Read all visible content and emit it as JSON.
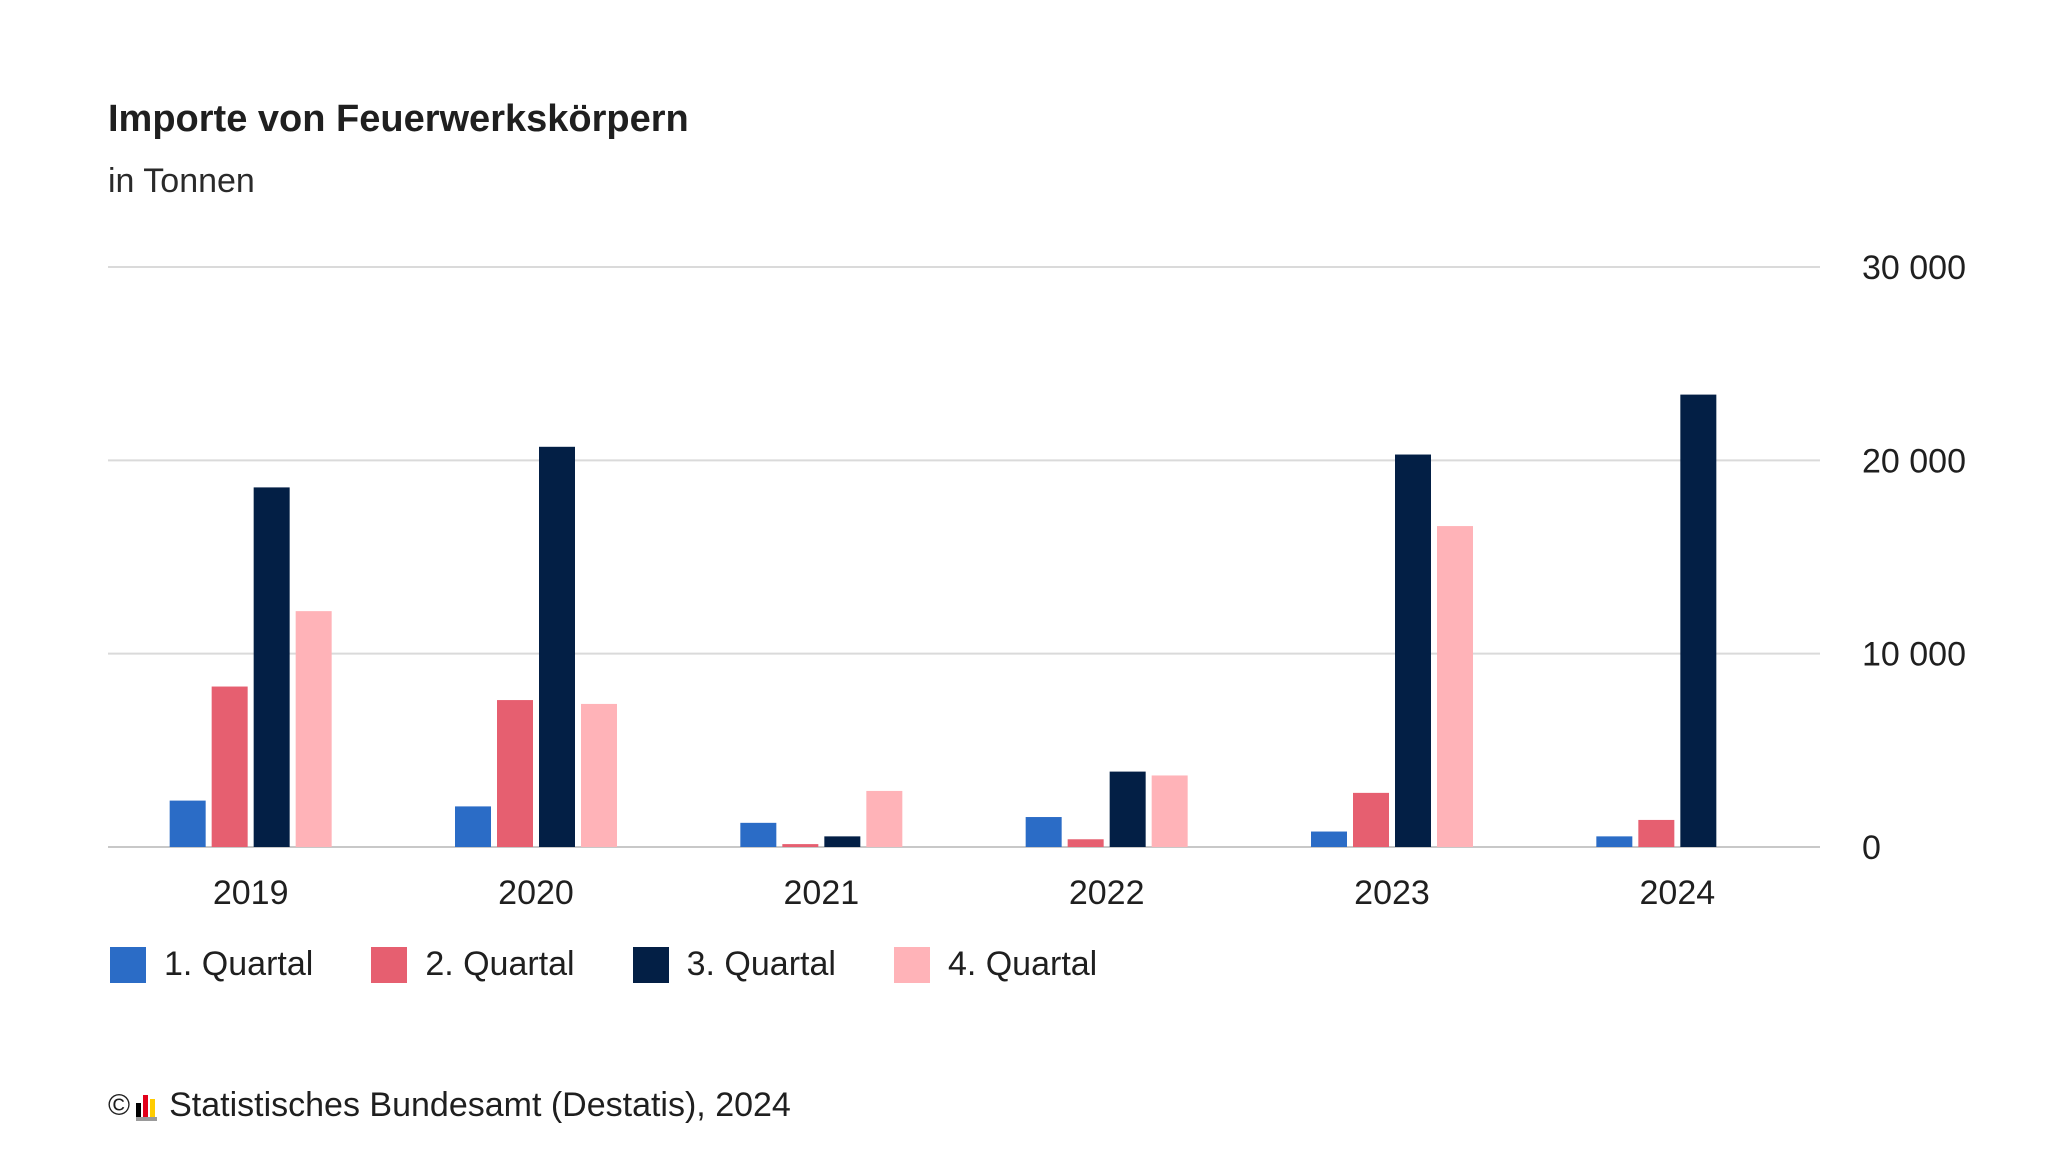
{
  "header": {
    "title": "Importe von Feuerwerkskörpern",
    "subtitle": "in Tonnen"
  },
  "chart_data": {
    "type": "bar",
    "title": "Importe von Feuerwerkskörpern",
    "subtitle": "in Tonnen",
    "categories": [
      "2019",
      "2020",
      "2021",
      "2022",
      "2023",
      "2024"
    ],
    "series": [
      {
        "name": "1. Quartal",
        "color": "#2b6cc6",
        "values": [
          2400,
          2100,
          1250,
          1550,
          800,
          550
        ]
      },
      {
        "name": "2. Quartal",
        "color": "#e65f70",
        "values": [
          8300,
          7600,
          150,
          400,
          2800,
          1400
        ]
      },
      {
        "name": "3. Quartal",
        "color": "#031f45",
        "values": [
          18600,
          20700,
          550,
          3900,
          20300,
          23400
        ]
      },
      {
        "name": "4. Quartal",
        "color": "#ffb3b8",
        "values": [
          12200,
          7400,
          2900,
          3700,
          16600,
          null
        ]
      }
    ],
    "ylim": [
      0,
      30000
    ],
    "yticks": [
      0,
      10000,
      20000,
      30000
    ],
    "ytick_labels": [
      "0",
      "10 000",
      "20 000",
      "30 000"
    ],
    "y_axis_side": "right",
    "grid": true,
    "legend": "bottom-left"
  },
  "legend": {
    "items": [
      {
        "label": "1. Quartal",
        "color": "#2b6cc6"
      },
      {
        "label": "2. Quartal",
        "color": "#e65f70"
      },
      {
        "label": "3. Quartal",
        "color": "#031f45"
      },
      {
        "label": "4. Quartal",
        "color": "#ffb3b8"
      }
    ]
  },
  "footer": {
    "copyright_symbol": "©",
    "source": "Statistisches Bundesamt (Destatis), 2024",
    "logo_icon": "destatis-logo-icon",
    "logo_colors": [
      "#000000",
      "#e2001a",
      "#ffcc00"
    ]
  }
}
